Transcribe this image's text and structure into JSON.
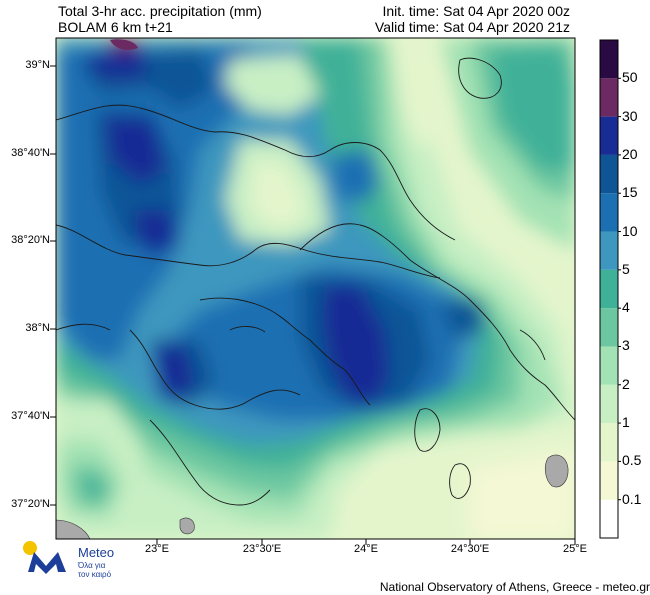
{
  "header": {
    "title_line1": "Total 3-hr acc. precipitation (mm)",
    "title_line2": "BOLAM 6 km t+21",
    "init_time": "Init. time: Sat 04 Apr 2020 00z",
    "valid_time": "Valid time: Sat 04 Apr 2020 21z"
  },
  "map": {
    "lat_labels": [
      "39°N",
      "38°40'N",
      "38°20'N",
      "38°N",
      "37°40'N",
      "37°20'N"
    ],
    "lon_labels": [
      "23°E",
      "23°30'E",
      "24°E",
      "24°30'E",
      "25°E"
    ]
  },
  "legend": {
    "levels": [
      "0.1",
      "0.5",
      "1",
      "2",
      "3",
      "4",
      "5",
      "10",
      "15",
      "20",
      "30",
      "50"
    ],
    "colors": [
      "#ffffff",
      "#f4f8d4",
      "#e4f5cc",
      "#c8efc4",
      "#a3e2b4",
      "#6cc7a0",
      "#3fb198",
      "#3e97be",
      "#1c70b2",
      "#0f5596",
      "#182c95",
      "#6b2a62",
      "#2a0a42"
    ]
  },
  "logo": {
    "name": "Meteo",
    "tagline_line1": "Όλα για",
    "tagline_line2": "τον καιρό"
  },
  "footer": {
    "credit": "National Observatory of Athens, Greece - meteo.gr"
  }
}
